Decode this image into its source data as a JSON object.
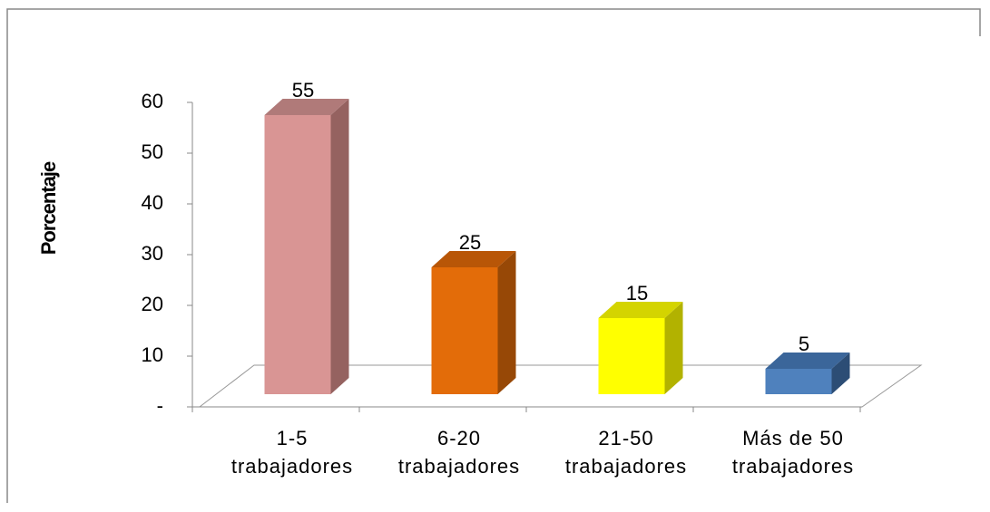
{
  "chart_data": {
    "type": "bar3d",
    "y_label": "Porcentaje",
    "categories": [
      [
        "1-5",
        "trabajadores"
      ],
      [
        "6-20",
        "trabajadores"
      ],
      [
        "21-50",
        "trabajadores"
      ],
      [
        "Más de 50",
        "trabajadores"
      ]
    ],
    "values": [
      55,
      25,
      15,
      5
    ],
    "colors": [
      "#d99594",
      "#e36c09",
      "#ffff00",
      "#4f81bd"
    ],
    "side_colors": [
      "#956260",
      "#974806",
      "#b2b200",
      "#2c4d75"
    ],
    "top_colors": [
      "#b07a79",
      "#b85607",
      "#d4d400",
      "#3b669a"
    ],
    "ylim": [
      0,
      60
    ],
    "yticks": [
      {
        "value": 0,
        "label": "-"
      },
      10,
      20,
      30,
      40,
      50,
      60
    ]
  }
}
